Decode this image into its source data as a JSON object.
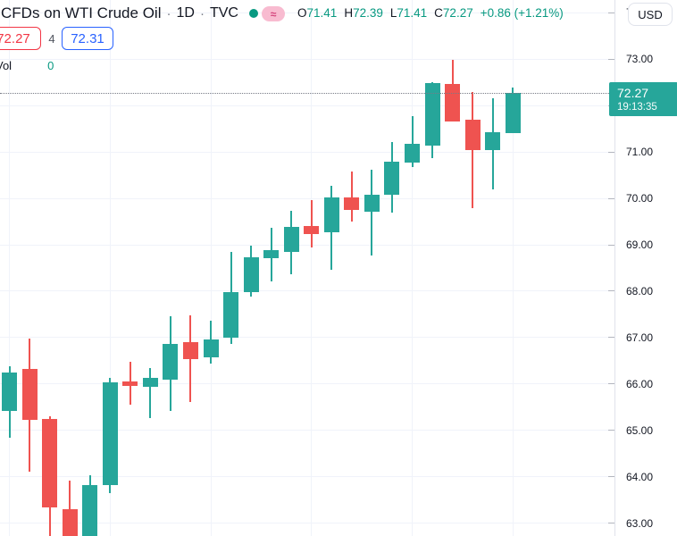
{
  "header": {
    "symbol_title": "CFDs on WTI Crude Oil",
    "separator": "·",
    "interval": "1D",
    "exchange": "TVC",
    "status_dot_color": "#089981",
    "approx_badge": "≈",
    "ohlc": {
      "items": [
        {
          "label": "O",
          "value": "71.41"
        },
        {
          "label": "H",
          "value": "72.39"
        },
        {
          "label": "L",
          "value": "71.41"
        },
        {
          "label": "C",
          "value": "72.27"
        }
      ],
      "change": "+0.86 (+1.21%)"
    },
    "bid": "72.27",
    "spread": "4",
    "ask": "72.31",
    "vol_label": "Vol",
    "vol_value": "0"
  },
  "axis": {
    "currency_button": "USD",
    "price_badge": {
      "price": "72.27",
      "countdown": "19:13:35"
    }
  },
  "chart_data": {
    "type": "candlestick",
    "title": "CFDs on WTI Crude Oil · 1D · TVC",
    "symbol": "CFDs on WTI Crude Oil",
    "interval": "1D",
    "exchange": "TVC",
    "currency": "USD",
    "grid": true,
    "legend_position": "top-left",
    "price_axis": {
      "min": 62.73,
      "max": 74.27,
      "tick_interval": 1.0,
      "visible_ticks": [
        74,
        73,
        72,
        71,
        70,
        69,
        68,
        67,
        66,
        65,
        64,
        63
      ]
    },
    "last_price": 72.27,
    "colors": {
      "up": "#26a69a",
      "down": "#ef5350",
      "grid": "#f0f3fa",
      "priceline": "#787b86"
    },
    "candles": [
      {
        "o": 65.42,
        "h": 66.38,
        "l": 64.85,
        "c": 66.25
      },
      {
        "o": 66.33,
        "h": 66.98,
        "l": 64.12,
        "c": 65.23
      },
      {
        "o": 65.25,
        "h": 65.3,
        "l": 62.6,
        "c": 63.35
      },
      {
        "o": 63.31,
        "h": 63.92,
        "l": 62.45,
        "c": 62.55
      },
      {
        "o": 62.55,
        "h": 64.04,
        "l": 62.45,
        "c": 63.83
      },
      {
        "o": 63.83,
        "h": 66.13,
        "l": 63.65,
        "c": 66.04
      },
      {
        "o": 66.06,
        "h": 66.48,
        "l": 65.56,
        "c": 65.96
      },
      {
        "o": 65.94,
        "h": 66.35,
        "l": 65.27,
        "c": 66.13
      },
      {
        "o": 66.1,
        "h": 67.46,
        "l": 65.42,
        "c": 66.87
      },
      {
        "o": 66.91,
        "h": 67.48,
        "l": 65.62,
        "c": 66.54
      },
      {
        "o": 66.58,
        "h": 67.37,
        "l": 66.44,
        "c": 66.97
      },
      {
        "o": 67.0,
        "h": 68.85,
        "l": 66.87,
        "c": 67.98
      },
      {
        "o": 67.98,
        "h": 68.98,
        "l": 67.88,
        "c": 68.73
      },
      {
        "o": 68.71,
        "h": 69.37,
        "l": 68.21,
        "c": 68.88
      },
      {
        "o": 68.85,
        "h": 69.73,
        "l": 68.37,
        "c": 69.38
      },
      {
        "o": 69.41,
        "h": 69.96,
        "l": 68.94,
        "c": 69.24
      },
      {
        "o": 69.27,
        "h": 70.27,
        "l": 68.46,
        "c": 70.01
      },
      {
        "o": 70.02,
        "h": 70.58,
        "l": 69.5,
        "c": 69.75
      },
      {
        "o": 69.72,
        "h": 70.62,
        "l": 68.76,
        "c": 70.07
      },
      {
        "o": 70.07,
        "h": 71.22,
        "l": 69.69,
        "c": 70.78
      },
      {
        "o": 70.76,
        "h": 71.77,
        "l": 70.68,
        "c": 71.17
      },
      {
        "o": 71.14,
        "h": 72.5,
        "l": 70.87,
        "c": 72.48
      },
      {
        "o": 72.46,
        "h": 72.99,
        "l": 71.65,
        "c": 71.65
      },
      {
        "o": 71.69,
        "h": 72.29,
        "l": 69.79,
        "c": 71.04
      },
      {
        "o": 71.04,
        "h": 72.15,
        "l": 70.2,
        "c": 71.42
      },
      {
        "o": 71.41,
        "h": 72.39,
        "l": 71.41,
        "c": 72.27
      }
    ]
  }
}
